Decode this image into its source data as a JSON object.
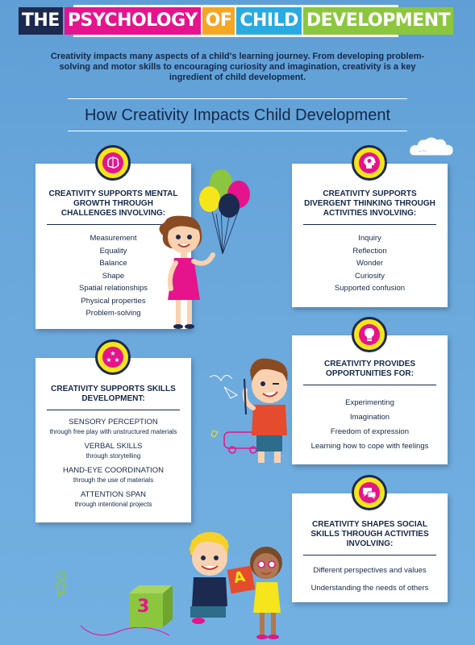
{
  "title": {
    "words": [
      "THE",
      "PSYCHOLOGY",
      "OF",
      "CHILD",
      "DEVELOPMENT"
    ]
  },
  "intro": "Creativity impacts many aspects of a child's learning journey. From developing problem-solving and motor skills to encouraging curiosity and imagination, creativity is a key ingredient of child development.",
  "section_title": "How Creativity Impacts Child Development",
  "cards": {
    "mental": {
      "icon": "brain-icon",
      "heading": "CREATIVITY SUPPORTS MENTAL GROWTH THROUGH CHALLENGES INVOLVING:",
      "items": [
        "Measurement",
        "Equality",
        "Balance",
        "Shape",
        "Spatial relationships",
        "Physical properties",
        "Problem-solving"
      ]
    },
    "divergent": {
      "icon": "head-gear-icon",
      "heading": "CREATIVITY SUPPORTS DIVERGENT THINKING THROUGH ACTIVITIES INVOLVING:",
      "items": [
        "Inquiry",
        "Reflection",
        "Wonder",
        "Curiosity",
        "Supported confusion"
      ]
    },
    "skills": {
      "icon": "stars-icon",
      "heading": "CREATIVITY SUPPORTS SKILLS DEVELOPMENT:",
      "items": [
        {
          "title": "SENSORY PERCEPTION",
          "sub": "through free play with unstructured materials"
        },
        {
          "title": "VERBAL SKILLS",
          "sub": "through storytelling"
        },
        {
          "title": "HAND-EYE COORDINATION",
          "sub": "through the use of materials"
        },
        {
          "title": "ATTENTION SPAN",
          "sub": "through intentional projects"
        }
      ]
    },
    "opportunities": {
      "icon": "lightbulb-icon",
      "heading": "CREATIVITY PROVIDES OPPORTUNITIES FOR:",
      "items": [
        "Experimenting",
        "Imagination",
        "Freedom of expression",
        "Learning how to cope with feelings"
      ]
    },
    "social": {
      "icon": "speech-bubbles-icon",
      "heading": "CREATIVITY SHAPES SOCIAL SKILLS THROUGH ACTIVITIES INVOLVING:",
      "items": [
        "Different perspectives and values",
        "Understanding the needs of others"
      ]
    }
  },
  "blocks": {
    "block_a": "A",
    "block_3": "3"
  },
  "colors": {
    "navy": "#1c2a4f",
    "pink": "#e5148d",
    "orange": "#f5a623",
    "cyan": "#29aae1",
    "green": "#8cc63f",
    "yellow": "#f5e51a",
    "background": "#6aa8dc"
  }
}
